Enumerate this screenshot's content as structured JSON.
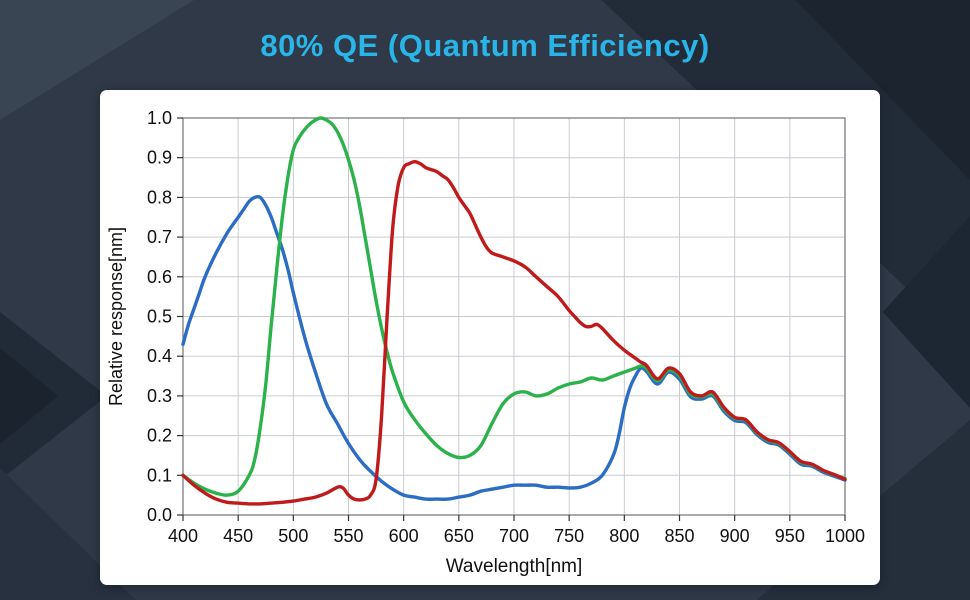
{
  "header": {
    "title": "80% QE (Quantum Efficiency)",
    "title_color": "#2ab5e8"
  },
  "chart_data": {
    "type": "line",
    "title": "80% QE (Quantum Efficiency)",
    "xlabel": "Wavelength[nm]",
    "ylabel": "Relative response[nm]",
    "xlim": [
      400,
      1000
    ],
    "ylim": [
      0.0,
      1.0
    ],
    "x_ticks": [
      400,
      450,
      500,
      550,
      600,
      650,
      700,
      750,
      800,
      850,
      900,
      950,
      1000
    ],
    "y_tick_labels": [
      "0.0",
      "0.1",
      "0.2",
      "0.3",
      "0.4",
      "0.5",
      "0.6",
      "0.7",
      "0.8",
      "0.9",
      "1.0"
    ],
    "y_ticks": [
      0.0,
      0.1,
      0.2,
      0.3,
      0.4,
      0.5,
      0.6,
      0.7,
      0.8,
      0.9,
      1.0
    ],
    "grid": true,
    "legend": "none",
    "series": [
      {
        "name": "blue-channel",
        "color": "#2b6cc4",
        "points": [
          [
            400,
            0.43
          ],
          [
            405,
            0.48
          ],
          [
            410,
            0.52
          ],
          [
            415,
            0.56
          ],
          [
            420,
            0.6
          ],
          [
            430,
            0.66
          ],
          [
            440,
            0.71
          ],
          [
            450,
            0.75
          ],
          [
            455,
            0.77
          ],
          [
            460,
            0.79
          ],
          [
            465,
            0.8
          ],
          [
            470,
            0.8
          ],
          [
            475,
            0.78
          ],
          [
            480,
            0.75
          ],
          [
            485,
            0.71
          ],
          [
            490,
            0.67
          ],
          [
            495,
            0.62
          ],
          [
            500,
            0.56
          ],
          [
            510,
            0.45
          ],
          [
            520,
            0.36
          ],
          [
            530,
            0.28
          ],
          [
            540,
            0.23
          ],
          [
            550,
            0.18
          ],
          [
            560,
            0.14
          ],
          [
            570,
            0.11
          ],
          [
            580,
            0.085
          ],
          [
            590,
            0.065
          ],
          [
            600,
            0.05
          ],
          [
            610,
            0.045
          ],
          [
            620,
            0.04
          ],
          [
            630,
            0.04
          ],
          [
            640,
            0.04
          ],
          [
            650,
            0.045
          ],
          [
            660,
            0.05
          ],
          [
            670,
            0.06
          ],
          [
            680,
            0.065
          ],
          [
            690,
            0.07
          ],
          [
            700,
            0.075
          ],
          [
            710,
            0.075
          ],
          [
            720,
            0.075
          ],
          [
            730,
            0.07
          ],
          [
            740,
            0.07
          ],
          [
            750,
            0.068
          ],
          [
            760,
            0.07
          ],
          [
            770,
            0.08
          ],
          [
            780,
            0.1
          ],
          [
            790,
            0.15
          ],
          [
            795,
            0.2
          ],
          [
            800,
            0.27
          ],
          [
            805,
            0.32
          ],
          [
            810,
            0.35
          ],
          [
            815,
            0.37
          ],
          [
            820,
            0.362
          ],
          [
            830,
            0.33
          ],
          [
            840,
            0.36
          ],
          [
            850,
            0.342
          ],
          [
            860,
            0.298
          ],
          [
            870,
            0.292
          ],
          [
            880,
            0.3
          ],
          [
            890,
            0.262
          ],
          [
            900,
            0.238
          ],
          [
            910,
            0.233
          ],
          [
            920,
            0.203
          ],
          [
            930,
            0.183
          ],
          [
            940,
            0.176
          ],
          [
            950,
            0.153
          ],
          [
            960,
            0.128
          ],
          [
            970,
            0.123
          ],
          [
            980,
            0.108
          ],
          [
            990,
            0.098
          ],
          [
            1000,
            0.088
          ]
        ]
      },
      {
        "name": "green-channel",
        "color": "#2bb24a",
        "points": [
          [
            400,
            0.1
          ],
          [
            410,
            0.08
          ],
          [
            420,
            0.065
          ],
          [
            430,
            0.055
          ],
          [
            440,
            0.05
          ],
          [
            450,
            0.06
          ],
          [
            460,
            0.1
          ],
          [
            465,
            0.14
          ],
          [
            470,
            0.22
          ],
          [
            475,
            0.33
          ],
          [
            480,
            0.48
          ],
          [
            485,
            0.62
          ],
          [
            490,
            0.75
          ],
          [
            495,
            0.85
          ],
          [
            500,
            0.92
          ],
          [
            505,
            0.95
          ],
          [
            510,
            0.97
          ],
          [
            515,
            0.985
          ],
          [
            520,
            0.995
          ],
          [
            525,
            1.0
          ],
          [
            530,
            0.995
          ],
          [
            535,
            0.985
          ],
          [
            540,
            0.965
          ],
          [
            545,
            0.935
          ],
          [
            550,
            0.895
          ],
          [
            555,
            0.845
          ],
          [
            560,
            0.78
          ],
          [
            565,
            0.7
          ],
          [
            570,
            0.62
          ],
          [
            575,
            0.54
          ],
          [
            580,
            0.47
          ],
          [
            585,
            0.41
          ],
          [
            590,
            0.36
          ],
          [
            600,
            0.285
          ],
          [
            610,
            0.24
          ],
          [
            620,
            0.205
          ],
          [
            630,
            0.175
          ],
          [
            640,
            0.155
          ],
          [
            650,
            0.145
          ],
          [
            660,
            0.15
          ],
          [
            670,
            0.175
          ],
          [
            680,
            0.23
          ],
          [
            690,
            0.28
          ],
          [
            700,
            0.305
          ],
          [
            710,
            0.31
          ],
          [
            720,
            0.3
          ],
          [
            730,
            0.305
          ],
          [
            740,
            0.32
          ],
          [
            750,
            0.33
          ],
          [
            760,
            0.335
          ],
          [
            770,
            0.345
          ],
          [
            780,
            0.34
          ],
          [
            790,
            0.35
          ],
          [
            800,
            0.36
          ],
          [
            810,
            0.37
          ],
          [
            815,
            0.375
          ],
          [
            820,
            0.37
          ],
          [
            830,
            0.338
          ],
          [
            840,
            0.365
          ],
          [
            850,
            0.35
          ],
          [
            860,
            0.305
          ],
          [
            870,
            0.298
          ],
          [
            880,
            0.305
          ],
          [
            890,
            0.268
          ],
          [
            900,
            0.244
          ],
          [
            910,
            0.238
          ],
          [
            920,
            0.208
          ],
          [
            930,
            0.188
          ],
          [
            940,
            0.18
          ],
          [
            950,
            0.158
          ],
          [
            960,
            0.133
          ],
          [
            970,
            0.127
          ],
          [
            980,
            0.112
          ],
          [
            990,
            0.101
          ],
          [
            1000,
            0.092
          ]
        ]
      },
      {
        "name": "red-channel",
        "color": "#c01a1a",
        "points": [
          [
            400,
            0.1
          ],
          [
            410,
            0.075
          ],
          [
            420,
            0.055
          ],
          [
            430,
            0.04
          ],
          [
            440,
            0.032
          ],
          [
            450,
            0.03
          ],
          [
            460,
            0.028
          ],
          [
            470,
            0.028
          ],
          [
            480,
            0.03
          ],
          [
            490,
            0.032
          ],
          [
            500,
            0.035
          ],
          [
            510,
            0.04
          ],
          [
            520,
            0.045
          ],
          [
            530,
            0.055
          ],
          [
            540,
            0.07
          ],
          [
            545,
            0.068
          ],
          [
            550,
            0.05
          ],
          [
            555,
            0.04
          ],
          [
            560,
            0.038
          ],
          [
            565,
            0.04
          ],
          [
            570,
            0.05
          ],
          [
            575,
            0.09
          ],
          [
            580,
            0.25
          ],
          [
            585,
            0.5
          ],
          [
            590,
            0.72
          ],
          [
            595,
            0.83
          ],
          [
            600,
            0.875
          ],
          [
            605,
            0.885
          ],
          [
            610,
            0.89
          ],
          [
            615,
            0.885
          ],
          [
            620,
            0.875
          ],
          [
            625,
            0.87
          ],
          [
            630,
            0.865
          ],
          [
            635,
            0.855
          ],
          [
            640,
            0.845
          ],
          [
            645,
            0.825
          ],
          [
            650,
            0.8
          ],
          [
            655,
            0.78
          ],
          [
            660,
            0.76
          ],
          [
            665,
            0.73
          ],
          [
            670,
            0.7
          ],
          [
            675,
            0.675
          ],
          [
            680,
            0.66
          ],
          [
            690,
            0.65
          ],
          [
            700,
            0.64
          ],
          [
            710,
            0.625
          ],
          [
            720,
            0.6
          ],
          [
            730,
            0.575
          ],
          [
            740,
            0.55
          ],
          [
            750,
            0.515
          ],
          [
            755,
            0.5
          ],
          [
            760,
            0.485
          ],
          [
            765,
            0.475
          ],
          [
            770,
            0.475
          ],
          [
            775,
            0.48
          ],
          [
            780,
            0.47
          ],
          [
            790,
            0.44
          ],
          [
            800,
            0.415
          ],
          [
            810,
            0.395
          ],
          [
            815,
            0.385
          ],
          [
            820,
            0.377
          ],
          [
            830,
            0.343
          ],
          [
            840,
            0.37
          ],
          [
            850,
            0.356
          ],
          [
            860,
            0.31
          ],
          [
            870,
            0.3
          ],
          [
            880,
            0.31
          ],
          [
            890,
            0.272
          ],
          [
            900,
            0.246
          ],
          [
            910,
            0.24
          ],
          [
            920,
            0.21
          ],
          [
            930,
            0.19
          ],
          [
            940,
            0.182
          ],
          [
            950,
            0.16
          ],
          [
            960,
            0.135
          ],
          [
            970,
            0.128
          ],
          [
            980,
            0.113
          ],
          [
            990,
            0.102
          ],
          [
            1000,
            0.09
          ]
        ]
      }
    ]
  }
}
